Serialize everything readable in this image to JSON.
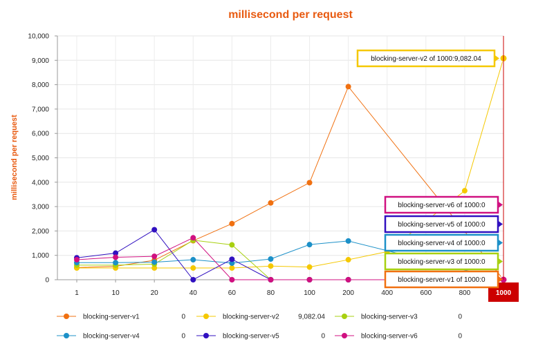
{
  "chart_data": {
    "type": "line",
    "title": "millisecond per request",
    "ylabel": "millisecond per request",
    "xlabel": "",
    "categories": [
      "1",
      "10",
      "20",
      "40",
      "60",
      "80",
      "100",
      "200",
      "400",
      "600",
      "800",
      "1000"
    ],
    "yticks": [
      "0",
      "1,000",
      "2,000",
      "3,000",
      "4,000",
      "5,000",
      "6,000",
      "7,000",
      "8,000",
      "9,000",
      "10,000"
    ],
    "ylim": [
      0,
      10000
    ],
    "grid": true,
    "legend_position": "bottom",
    "series": [
      {
        "name": "blocking-server-v1",
        "color": "#f07010",
        "legend_value": "0",
        "values": [
          500,
          550,
          800,
          1600,
          2300,
          3150,
          3980,
          7920,
          null,
          null,
          null,
          0
        ]
      },
      {
        "name": "blocking-server-v2",
        "color": "#f5c800",
        "legend_value": "9,082.04",
        "values": [
          480,
          480,
          480,
          480,
          480,
          560,
          520,
          820,
          1150,
          null,
          3650,
          9082.04
        ]
      },
      {
        "name": "blocking-server-v3",
        "color": "#a8d010",
        "legend_value": "0",
        "values": [
          600,
          600,
          640,
          1620,
          1430,
          0,
          0,
          0,
          null,
          null,
          null,
          0
        ]
      },
      {
        "name": "blocking-server-v4",
        "color": "#1c90c8",
        "legend_value": "0",
        "values": [
          700,
          700,
          720,
          820,
          680,
          850,
          1440,
          1590,
          null,
          null,
          null,
          0
        ]
      },
      {
        "name": "blocking-server-v5",
        "color": "#3010c0",
        "legend_value": "0",
        "values": [
          900,
          1090,
          2050,
          0,
          840,
          0,
          0,
          0,
          null,
          null,
          null,
          0
        ]
      },
      {
        "name": "blocking-server-v6",
        "color": "#d01080",
        "legend_value": "0",
        "values": [
          820,
          920,
          960,
          1720,
          0,
          0,
          0,
          0,
          null,
          null,
          null,
          0
        ]
      }
    ],
    "crosshair_label": "1000",
    "tooltips": [
      {
        "text": "blocking-server-v2 of 1000:9,082.04",
        "color": "#f5c800"
      },
      {
        "text": "blocking-server-v6 of 1000:0",
        "color": "#d01080"
      },
      {
        "text": "blocking-server-v5 of 1000:0",
        "color": "#3010c0"
      },
      {
        "text": "blocking-server-v4 of 1000:0",
        "color": "#1c90c8"
      },
      {
        "text": "blocking-server-v3 of 1000:0",
        "color": "#a8d010"
      },
      {
        "text": "blocking-server-v1 of 1000:0",
        "color": "#f07010"
      }
    ],
    "title_color": "#e85a10",
    "axis_title_color": "#e85a10",
    "crosshair_color": "#cc0000"
  }
}
